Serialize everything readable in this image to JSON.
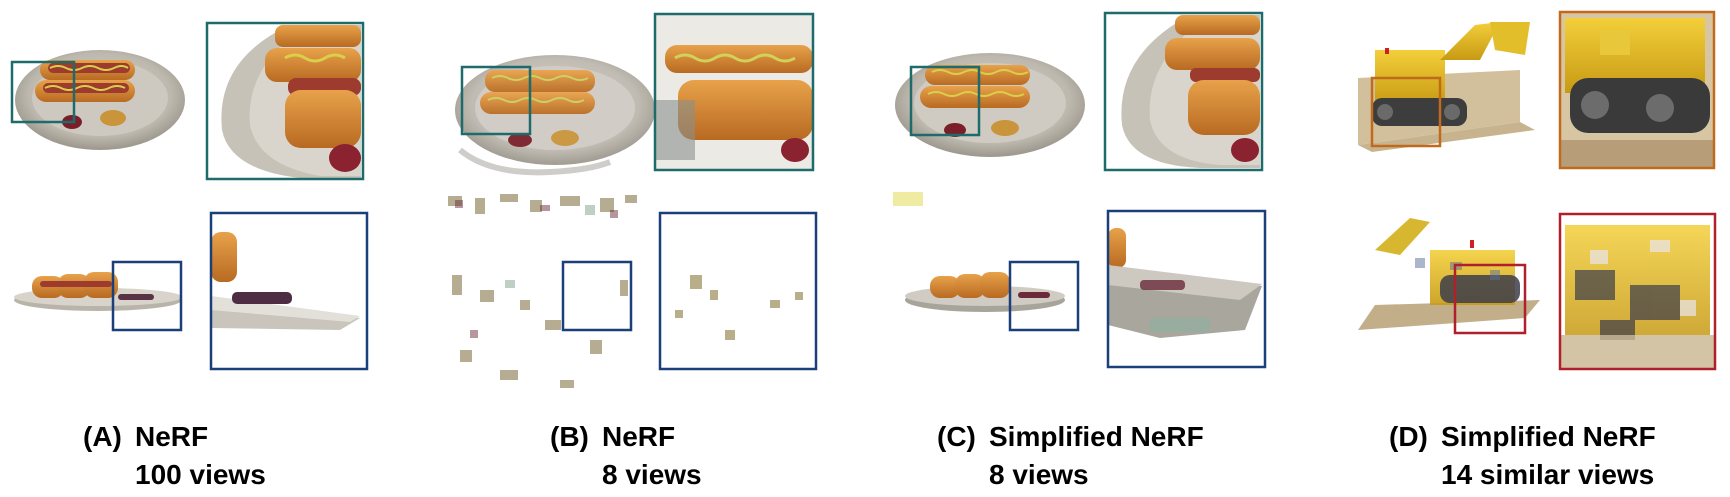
{
  "panels": [
    {
      "letter": "(A)",
      "method": "NeRF",
      "views": "100 views"
    },
    {
      "letter": "(B)",
      "method": "NeRF",
      "views": "8 views"
    },
    {
      "letter": "(C)",
      "method": "Simplified NeRF",
      "views": "8 views"
    },
    {
      "letter": "(D)",
      "method": "Simplified NeRF",
      "views": "14 similar views"
    }
  ],
  "colors": {
    "teal_box": "#1f6b6b",
    "blue_box": "#1b3f7a",
    "orange_box": "#c06a1e",
    "red_box": "#b0202c"
  }
}
